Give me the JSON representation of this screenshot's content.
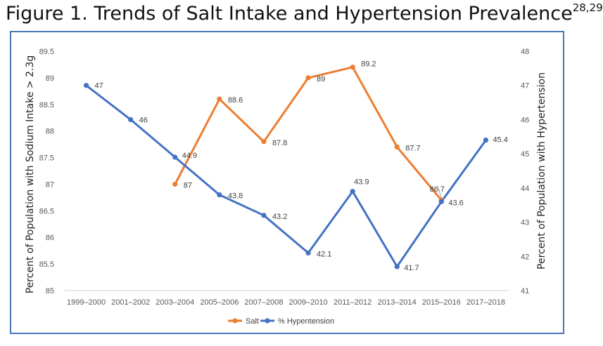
{
  "title": {
    "main": "Figure 1. Trends of Salt Intake and Hypertension Prevalence",
    "superscript": "28,29"
  },
  "chart_data": {
    "type": "line",
    "categories": [
      "1999–2000",
      "2001–2002",
      "2003–2004",
      "2005–2006",
      "2007–2008",
      "2009–2010",
      "2011–2012",
      "2013–2014",
      "2015–2016",
      "2017–2018"
    ],
    "series": [
      {
        "name": "Salt",
        "axis": "left",
        "color": "#ed7d31",
        "values": [
          null,
          null,
          87,
          88.6,
          87.8,
          89,
          89.2,
          87.7,
          86.7,
          null
        ],
        "labels": [
          "",
          "",
          "87",
          "88.6",
          "87.8",
          "89",
          "89.2",
          "87.7",
          "86.7",
          ""
        ]
      },
      {
        "name": "% Hypentension",
        "axis": "right",
        "color": "#4472c4",
        "values": [
          47,
          46,
          44.9,
          43.8,
          43.2,
          42.1,
          43.9,
          41.7,
          43.6,
          45.4
        ],
        "labels": [
          "47",
          "46",
          "44.9",
          "43.8",
          "43.2",
          "42.1",
          "43.9",
          "41.7",
          "43.6",
          "45.4"
        ]
      }
    ],
    "ylabel_left": "Percent of Population with Sodium Intake > 2.3g",
    "ylabel_right": "Percent of Population with Hypertension",
    "ylim_left": [
      85,
      89.5
    ],
    "yticks_left": [
      "85",
      "85.5",
      "86",
      "86.5",
      "87",
      "87.5",
      "88",
      "88.5",
      "89",
      "89.5"
    ],
    "ylim_right": [
      41,
      48
    ],
    "yticks_right": [
      "41",
      "42",
      "43",
      "44",
      "45",
      "46",
      "47",
      "48"
    ],
    "grid": false,
    "legend_position": "bottom"
  }
}
